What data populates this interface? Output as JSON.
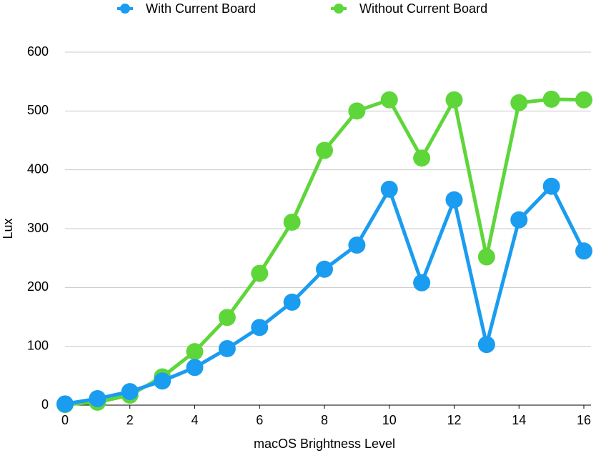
{
  "chart_data": {
    "type": "line",
    "x_label": "macOS Brightness Level",
    "y_label": "Lux",
    "x": [
      0,
      1,
      2,
      3,
      4,
      5,
      6,
      7,
      8,
      9,
      10,
      11,
      12,
      13,
      14,
      15,
      16
    ],
    "series": [
      {
        "name": "With Current Board",
        "color": "#1a9cf0",
        "values": [
          2,
          11,
          23,
          41,
          64,
          96,
          132,
          175,
          231,
          272,
          367,
          208,
          349,
          103,
          315,
          372,
          262
        ]
      },
      {
        "name": "Without Current Board",
        "color": "#5ed63a",
        "values": [
          1,
          5,
          17,
          48,
          91,
          149,
          224,
          311,
          433,
          500,
          519,
          420,
          519,
          252,
          514,
          520,
          519
        ]
      }
    ],
    "xlim": [
      0,
      16
    ],
    "xticks": [
      0,
      2,
      4,
      6,
      8,
      10,
      12,
      14,
      16
    ],
    "ylim": [
      0,
      600
    ],
    "yticks": [
      0,
      100,
      200,
      300,
      400,
      500,
      600
    ],
    "grid": true,
    "legend": "top"
  }
}
